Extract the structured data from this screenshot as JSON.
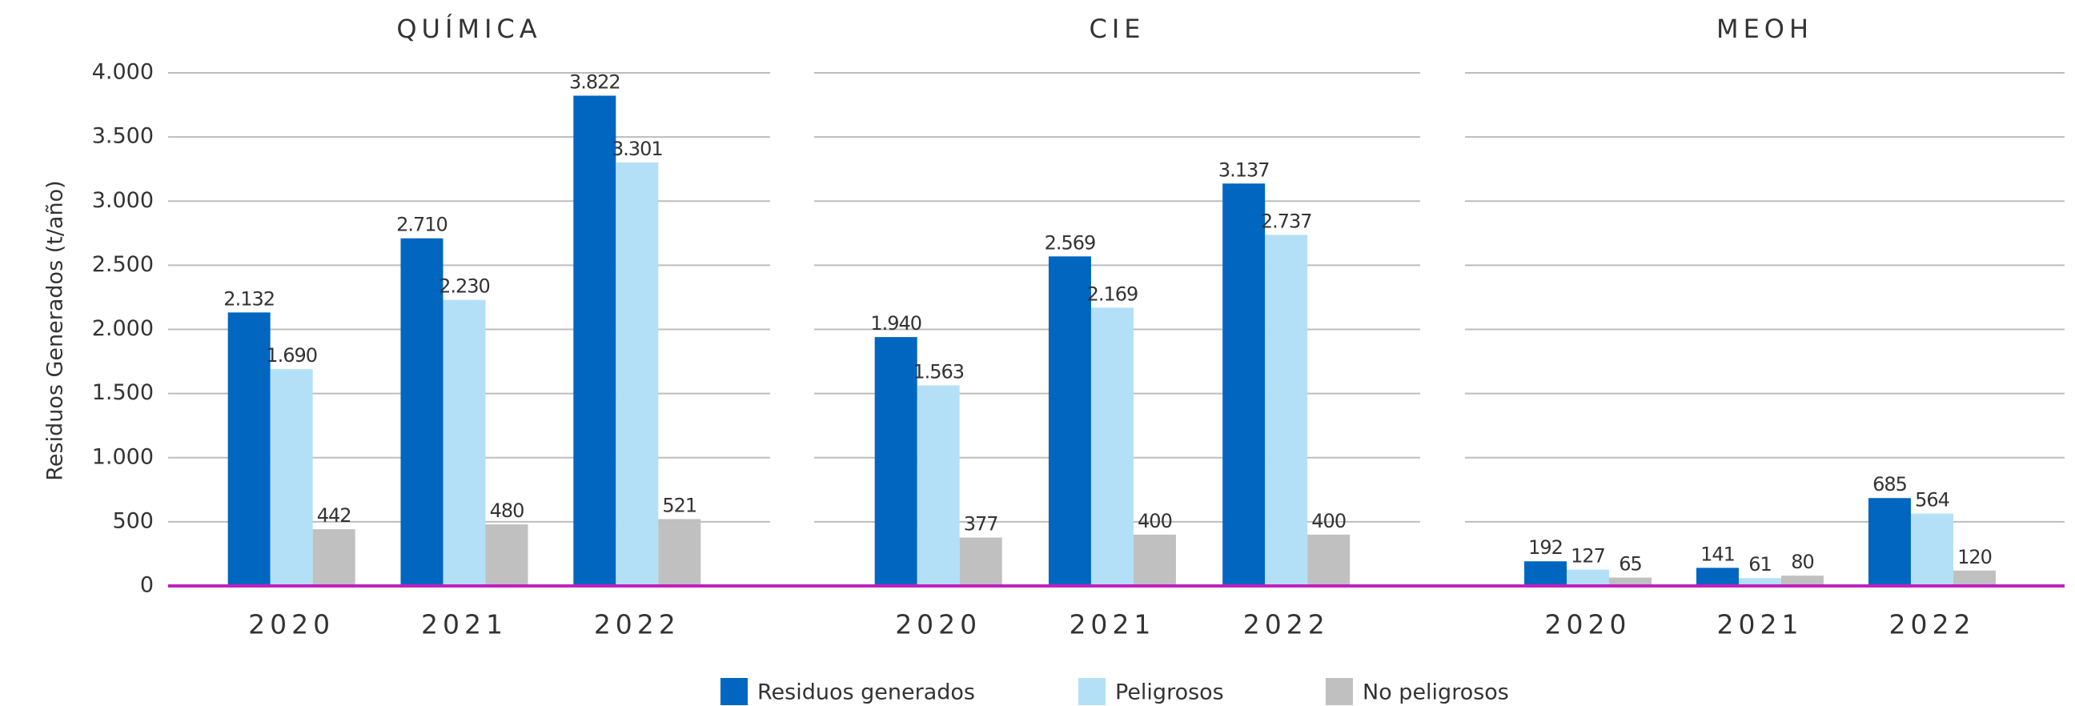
{
  "chart_data": {
    "type": "bar",
    "y_label": "Residuos Generados (t/año)",
    "ylim": [
      0,
      4000
    ],
    "yticks": [
      0,
      500,
      {
        "value": 1000,
        "label": "1.000"
      },
      {
        "value": 1500,
        "label": "1.500"
      },
      {
        "value": 2000,
        "label": "2.000"
      },
      {
        "value": 2500,
        "label": "2.500"
      },
      {
        "value": 3000,
        "label": "3.000"
      },
      {
        "value": 3500,
        "label": "3.500"
      },
      {
        "value": 4000,
        "label": "4.000"
      }
    ],
    "grid": true,
    "legend": [
      {
        "name": "Residuos generados",
        "color": "#0066c0"
      },
      {
        "name": "Peligrosos",
        "color": "#b3e0f7"
      },
      {
        "name": "No peligrosos",
        "color": "#c0c0c0"
      }
    ],
    "panels": [
      {
        "title": "QUÍMICA",
        "categories": [
          "2020",
          "2021",
          "2022"
        ],
        "series": [
          {
            "values": [
              2132,
              2710,
              3822
            ],
            "value_labels": [
              "2.132",
              "2.710",
              "3.822"
            ]
          },
          {
            "values": [
              1690,
              2230,
              3301
            ],
            "value_labels": [
              "1.690",
              "2.230",
              "3.301"
            ]
          },
          {
            "values": [
              442,
              480,
              521
            ],
            "value_labels": [
              "442",
              "480",
              "521"
            ]
          }
        ]
      },
      {
        "title": "CIE",
        "categories": [
          "2020",
          "2021",
          "2022"
        ],
        "series": [
          {
            "values": [
              1940,
              2569,
              3137
            ],
            "value_labels": [
              "1.940",
              "2.569",
              "3.137"
            ]
          },
          {
            "values": [
              1563,
              2169,
              2737
            ],
            "value_labels": [
              "1.563",
              "2.169",
              "2.737"
            ]
          },
          {
            "values": [
              377,
              400,
              400
            ],
            "value_labels": [
              "377",
              "400",
              "400"
            ]
          }
        ]
      },
      {
        "title": "MEOH",
        "categories": [
          "2020",
          "2021",
          "2022"
        ],
        "series": [
          {
            "values": [
              192,
              141,
              685
            ],
            "value_labels": [
              "192",
              "141",
              "685"
            ]
          },
          {
            "values": [
              127,
              61,
              564
            ],
            "value_labels": [
              "127",
              "61",
              "564"
            ]
          },
          {
            "values": [
              65,
              80,
              120
            ],
            "value_labels": [
              "65",
              "80",
              "120"
            ]
          }
        ]
      }
    ]
  }
}
